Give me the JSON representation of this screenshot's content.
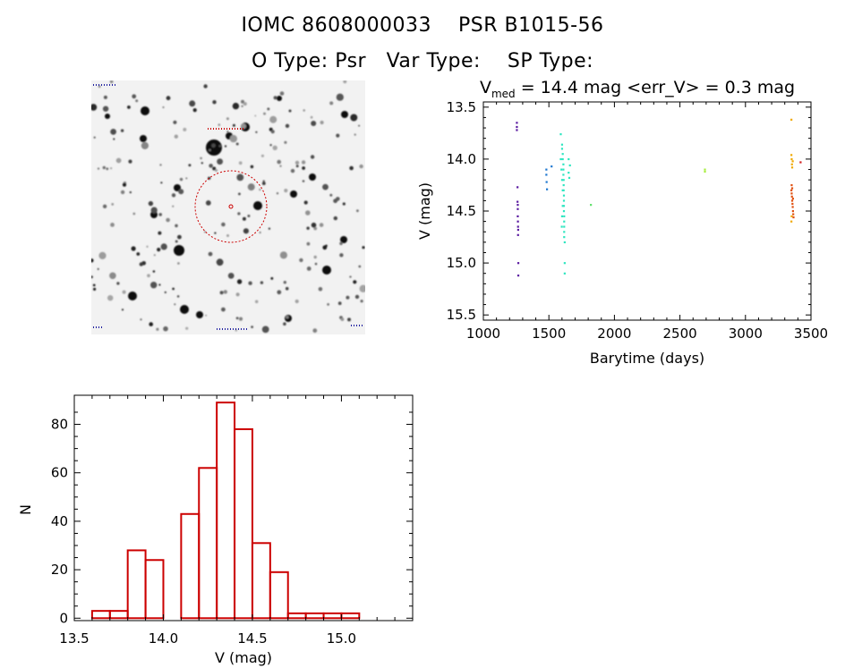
{
  "header": {
    "title_line1": "IOMC 8608000033    PSR B1015-56",
    "title_line2": "O Type: Psr   Var Type:    SP Type:"
  },
  "colors": {
    "histogram": "#cc0000",
    "axes": "#000000",
    "circle": "#cc0000"
  },
  "chart_data": [
    {
      "type": "scatter",
      "title_parts": {
        "sym": "V",
        "sub": "med",
        "rest": " = 14.4 mag <err_V> = 0.3 mag"
      },
      "xlabel": "Barytime (days)",
      "ylabel": "V (mag)",
      "xlim": [
        1000,
        3500
      ],
      "ylim": [
        15.55,
        13.45
      ],
      "y_inverted": true,
      "xticks": [
        1000,
        1500,
        2000,
        2500,
        3000,
        3500
      ],
      "yticks": [
        "13.5",
        "14.0",
        "14.5",
        "15.0",
        "15.5"
      ],
      "grid": false,
      "groups": [
        {
          "color": "#5a1aa0",
          "points": [
            [
              1255,
              13.65
            ],
            [
              1255,
              13.69
            ],
            [
              1255,
              13.72
            ],
            [
              1260,
              14.27
            ],
            [
              1260,
              14.41
            ],
            [
              1262,
              14.48
            ],
            [
              1262,
              14.55
            ],
            [
              1263,
              14.6
            ],
            [
              1264,
              14.65
            ],
            [
              1265,
              14.68
            ],
            [
              1264,
              14.73
            ],
            [
              1266,
              15.0
            ],
            [
              1266,
              15.12
            ],
            [
              1262,
              14.44
            ]
          ]
        },
        {
          "color": "#1f78d0",
          "points": [
            [
              1480,
              14.1
            ],
            [
              1480,
              14.15
            ],
            [
              1482,
              14.22
            ],
            [
              1485,
              14.29
            ],
            [
              1520,
              14.07
            ]
          ]
        },
        {
          "color": "#2ee6c0",
          "points": [
            [
              1590,
              13.76
            ],
            [
              1600,
              13.86
            ],
            [
              1600,
              13.9
            ],
            [
              1605,
              13.95
            ],
            [
              1605,
              14.0
            ],
            [
              1610,
              14.05
            ],
            [
              1610,
              14.1
            ],
            [
              1610,
              14.15
            ],
            [
              1612,
              14.2
            ],
            [
              1612,
              14.25
            ],
            [
              1612,
              14.3
            ],
            [
              1614,
              14.35
            ],
            [
              1614,
              14.4
            ],
            [
              1614,
              14.45
            ],
            [
              1614,
              14.5
            ],
            [
              1616,
              14.55
            ],
            [
              1616,
              14.6
            ],
            [
              1616,
              14.65
            ],
            [
              1616,
              14.7
            ],
            [
              1616,
              14.75
            ],
            [
              1620,
              14.8
            ],
            [
              1620,
              15.0
            ],
            [
              1620,
              15.1
            ],
            [
              1590,
              14.0
            ],
            [
              1595,
              14.1
            ],
            [
              1600,
              14.2
            ],
            [
              1605,
              14.3
            ],
            [
              1605,
              14.45
            ],
            [
              1600,
              14.55
            ],
            [
              1598,
              14.65
            ],
            [
              1650,
              14.0
            ],
            [
              1660,
              14.06
            ],
            [
              1650,
              14.13
            ],
            [
              1655,
              14.18
            ]
          ]
        },
        {
          "color": "#5ee06a",
          "points": [
            [
              1820,
              14.44
            ]
          ]
        },
        {
          "color": "#a8ee40",
          "points": [
            [
              2690,
              14.1
            ],
            [
              2690,
              14.12
            ]
          ]
        },
        {
          "color": "#f0a800",
          "points": [
            [
              3350,
              13.62
            ],
            [
              3350,
              13.96
            ],
            [
              3352,
              14.0
            ],
            [
              3354,
              14.05
            ],
            [
              3356,
              14.08
            ],
            [
              3350,
              14.6
            ],
            [
              3352,
              14.55
            ],
            [
              3360,
              14.02
            ]
          ]
        },
        {
          "color": "#e05010",
          "points": [
            [
              3350,
              14.3
            ],
            [
              3352,
              14.33
            ],
            [
              3354,
              14.36
            ],
            [
              3356,
              14.4
            ],
            [
              3358,
              14.43
            ],
            [
              3360,
              14.46
            ],
            [
              3362,
              14.5
            ],
            [
              3364,
              14.53
            ],
            [
              3366,
              14.56
            ],
            [
              3352,
              14.25
            ],
            [
              3356,
              14.28
            ],
            [
              3362,
              14.38
            ]
          ]
        },
        {
          "color": "#d02020",
          "points": [
            [
              3420,
              14.03
            ]
          ]
        }
      ]
    },
    {
      "type": "bar",
      "style": "histogram",
      "xlabel": "V (mag)",
      "ylabel": "N",
      "xlim": [
        13.5,
        15.4
      ],
      "ylim": [
        -1,
        92
      ],
      "xticks": [
        "13.5",
        "14.0",
        "14.5",
        "15.0"
      ],
      "yticks": [
        "0",
        "20",
        "40",
        "60",
        "80"
      ],
      "bin_width": 0.1,
      "bin_starts": [
        13.6,
        13.7,
        13.8,
        13.9,
        14.0,
        14.1,
        14.2,
        14.3,
        14.4,
        14.5,
        14.6,
        14.7,
        14.8,
        14.9,
        15.0,
        15.1
      ],
      "values": [
        3,
        3,
        28,
        24,
        0,
        43,
        62,
        89,
        78,
        31,
        19,
        2,
        2,
        2,
        2,
        0
      ]
    }
  ]
}
